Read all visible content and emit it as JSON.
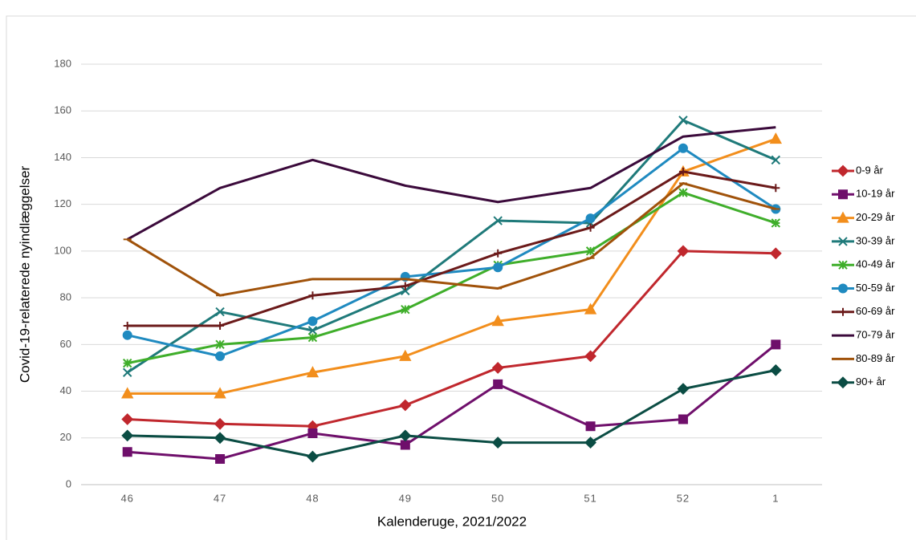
{
  "chart_data": {
    "type": "line",
    "xlabel": "Kalenderuge, 2021/2022",
    "ylabel": "Covid-19-relaterede nyindlæggelser",
    "categories": [
      "46",
      "47",
      "48",
      "49",
      "50",
      "51",
      "52",
      "1"
    ],
    "ylim": [
      0,
      180
    ],
    "yticks": [
      0,
      20,
      40,
      60,
      80,
      100,
      120,
      140,
      160,
      180
    ],
    "grid": true,
    "legend": "right",
    "series": [
      {
        "name": "0-9 år",
        "color": "#c0272d",
        "marker": "diamond",
        "values": [
          28,
          26,
          25,
          34,
          50,
          55,
          100,
          99
        ]
      },
      {
        "name": "10-19 år",
        "color": "#6f0f6b",
        "marker": "square",
        "values": [
          14,
          11,
          22,
          17,
          43,
          25,
          28,
          60
        ]
      },
      {
        "name": "20-29 år",
        "color": "#f28e1c",
        "marker": "triangle",
        "values": [
          39,
          39,
          48,
          55,
          70,
          75,
          134,
          148
        ]
      },
      {
        "name": "30-39 år",
        "color": "#1f7a7a",
        "marker": "x",
        "values": [
          48,
          74,
          66,
          83,
          113,
          112,
          156,
          139
        ]
      },
      {
        "name": "40-49 år",
        "color": "#3fae2a",
        "marker": "asterisk",
        "values": [
          52,
          60,
          63,
          75,
          94,
          100,
          125,
          112
        ]
      },
      {
        "name": "50-59 år",
        "color": "#1f8ac0",
        "marker": "circle",
        "values": [
          64,
          55,
          70,
          89,
          93,
          114,
          144,
          118
        ]
      },
      {
        "name": "60-69 år",
        "color": "#6b1a1a",
        "marker": "plus",
        "values": [
          68,
          68,
          81,
          85,
          99,
          110,
          134,
          127
        ]
      },
      {
        "name": "70-79 år",
        "color": "#3b0a3b",
        "marker": "none",
        "values": [
          105,
          127,
          139,
          128,
          121,
          127,
          149,
          153
        ]
      },
      {
        "name": "80-89 år",
        "color": "#a0520a",
        "marker": "dash",
        "values": [
          105,
          81,
          88,
          88,
          84,
          97,
          129,
          118
        ]
      },
      {
        "name": "90+ år",
        "color": "#0b4d44",
        "marker": "diamond",
        "values": [
          21,
          20,
          12,
          21,
          18,
          18,
          41,
          49
        ]
      }
    ]
  }
}
